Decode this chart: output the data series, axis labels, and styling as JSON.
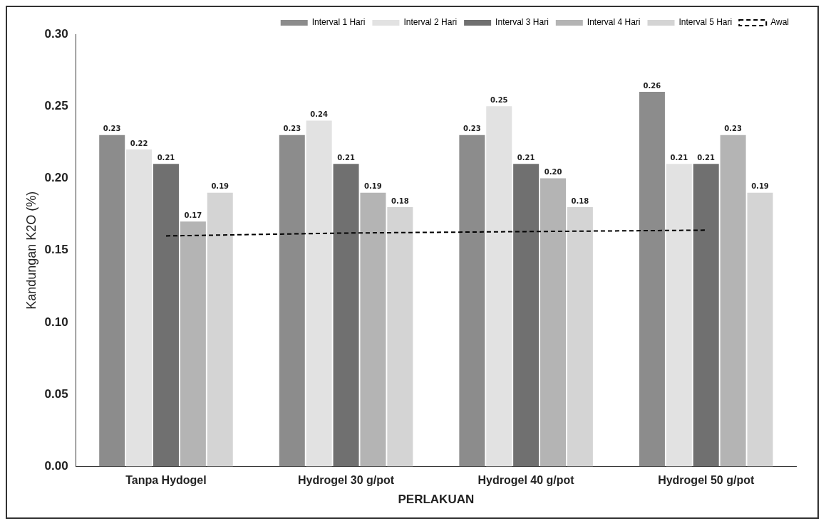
{
  "chart_data": {
    "type": "bar",
    "xlabel": "PERLAKUAN",
    "ylabel": "Kandungan K2O (%)",
    "categories": [
      "Tanpa Hydogel",
      "Hydrogel 30 g/pot",
      "Hydrogel 40 g/pot",
      "Hydrogel 50 g/pot"
    ],
    "series": [
      {
        "name": "Interval 1 Hari",
        "color": "#8c8c8c",
        "values": [
          0.23,
          0.23,
          0.23,
          0.26
        ],
        "value_labels": [
          "0.23",
          "0.23",
          "0.23",
          "0.26"
        ]
      },
      {
        "name": "Interval 2 Hari",
        "color": "#e2e2e2",
        "values": [
          0.22,
          0.24,
          0.25,
          0.21
        ],
        "value_labels": [
          "0.22",
          "0.24",
          "0.25",
          "0.21"
        ]
      },
      {
        "name": "Interval 3 Hari",
        "color": "#707070",
        "values": [
          0.21,
          0.21,
          0.21,
          0.21
        ],
        "value_labels": [
          "0.21",
          "0.21",
          "0.21",
          "0.21"
        ]
      },
      {
        "name": "Interval 4 Hari",
        "color": "#b4b4b4",
        "values": [
          0.17,
          0.19,
          0.2,
          0.23
        ],
        "value_labels": [
          "0.17",
          "0.19",
          "0.20",
          "0.23"
        ]
      },
      {
        "name": "Interval 5 Hari",
        "color": "#d4d4d4",
        "values": [
          0.19,
          0.18,
          0.18,
          0.19
        ],
        "value_labels": [
          "0.19",
          "0.18",
          "0.18",
          "0.19"
        ]
      },
      {
        "name": "Awal",
        "type": "line",
        "color": "#000000",
        "line_style": "dashed",
        "marker": "none",
        "values": [
          0.16,
          0.162,
          0.163,
          0.164
        ]
      }
    ],
    "ylim": [
      0,
      0.3
    ],
    "yticks": [
      {
        "value": 0,
        "label": "0.00"
      },
      {
        "value": 0.05,
        "label": "0.05"
      },
      {
        "value": 0.1,
        "label": "0.10"
      },
      {
        "value": 0.15,
        "label": "0.15"
      },
      {
        "value": 0.2,
        "label": "0.20"
      },
      {
        "value": 0.25,
        "label": "0.25"
      },
      {
        "value": 0.3,
        "label": "0.30"
      }
    ],
    "grid": false,
    "legend": "top"
  }
}
